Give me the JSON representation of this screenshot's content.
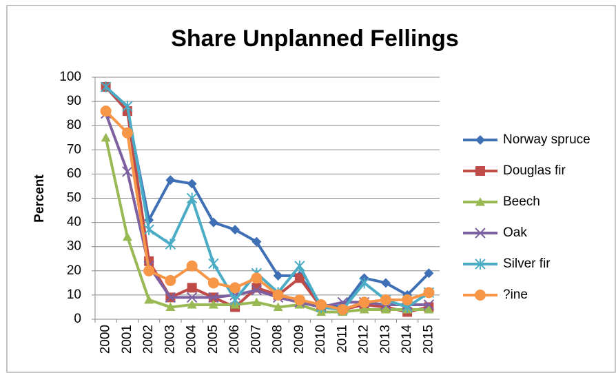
{
  "chart_data": {
    "type": "line",
    "title": "Share Unplanned Fellings",
    "y_label": "Percent",
    "categories": [
      "2000",
      "2001",
      "2002",
      "2003",
      "2004",
      "2005",
      "2006",
      "2007",
      "2008",
      "2009",
      "2010",
      "2011",
      "2012",
      "2013",
      "2014",
      "2015"
    ],
    "ylim": [
      0,
      100
    ],
    "yticks": [
      0,
      10,
      20,
      30,
      40,
      50,
      60,
      70,
      80,
      90,
      100
    ],
    "grid": true,
    "legend": "right",
    "series": [
      {
        "name": "Norway spruce",
        "color": "#3f6fb4",
        "marker": "diamond",
        "values": [
          96,
          86,
          41,
          57.5,
          56,
          40,
          37,
          32,
          18,
          18,
          6,
          5,
          17,
          15,
          10,
          19
        ]
      },
      {
        "name": "Douglas fir",
        "color": "#be4b48",
        "marker": "square",
        "values": [
          96,
          86,
          24,
          9,
          13,
          9,
          5,
          13,
          10,
          17,
          5,
          4,
          6,
          5,
          3,
          5
        ]
      },
      {
        "name": "Beech",
        "color": "#98b954",
        "marker": "triangle",
        "values": [
          75,
          34,
          8,
          5,
          6,
          6,
          6,
          7,
          5,
          6,
          3,
          3,
          4,
          4,
          4,
          4
        ]
      },
      {
        "name": "Oak",
        "color": "#7d60a0",
        "marker": "x",
        "values": [
          85,
          61,
          22,
          9,
          9,
          9,
          10,
          12,
          9,
          7,
          5,
          7,
          7,
          6,
          6,
          6
        ]
      },
      {
        "name": "Silver fir",
        "color": "#4bacc6",
        "marker": "star",
        "values": [
          96,
          88,
          37,
          31,
          50,
          23,
          8,
          19,
          11,
          22,
          5,
          4,
          15,
          8,
          5,
          11
        ]
      },
      {
        "name": "?ine",
        "color": "#f79646",
        "marker": "circle",
        "values": [
          86,
          77,
          20,
          16,
          22,
          15,
          13,
          17,
          10,
          8,
          6,
          4,
          7,
          8,
          8,
          11
        ]
      }
    ]
  }
}
